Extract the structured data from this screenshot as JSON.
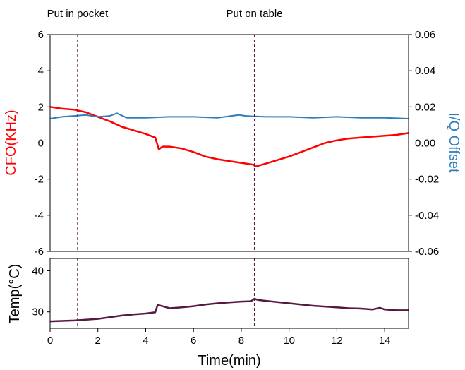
{
  "chart_data": [
    {
      "type": "line",
      "title": "",
      "xlabel": "",
      "xlim": [
        0,
        15
      ],
      "ylabel_left": "CFO(KHz)",
      "ylabel_right": "I/Q Offset",
      "ylim_left": [
        -6,
        6
      ],
      "ylim_right": [
        -0.06,
        0.06
      ],
      "y_ticks_left": [
        "-6",
        "-4",
        "-2",
        "0",
        "2",
        "4",
        "6"
      ],
      "y_tick_values_left": [
        -6,
        -4,
        -2,
        0,
        2,
        4,
        6
      ],
      "y_ticks_right": [
        "-0.06",
        "-0.04",
        "-0.02",
        "0.00",
        "0.02",
        "0.04",
        "0.06"
      ],
      "y_tick_values_right": [
        -0.06,
        -0.04,
        -0.02,
        0.0,
        0.02,
        0.04,
        0.06
      ],
      "grid": false,
      "annotations": [
        {
          "text": "Put in pocket",
          "x": 1.15
        },
        {
          "text": "Put on table",
          "x": 8.55
        }
      ],
      "series": [
        {
          "axis": "left",
          "color": "#ff0000",
          "x": [
            0,
            0.5,
            1.0,
            1.5,
            2.0,
            2.5,
            3.0,
            3.5,
            4.0,
            4.4,
            4.55,
            4.7,
            5.0,
            5.5,
            6.0,
            6.5,
            7.0,
            7.5,
            8.0,
            8.5,
            8.6,
            9.0,
            9.5,
            10.0,
            10.5,
            11.0,
            11.5,
            12.0,
            12.5,
            13.0,
            13.5,
            14.0,
            14.5,
            15.0
          ],
          "values": [
            2.0,
            1.9,
            1.85,
            1.7,
            1.45,
            1.2,
            0.9,
            0.7,
            0.5,
            0.3,
            -0.35,
            -0.2,
            -0.2,
            -0.3,
            -0.5,
            -0.75,
            -0.9,
            -1.0,
            -1.1,
            -1.2,
            -1.3,
            -1.15,
            -0.95,
            -0.75,
            -0.5,
            -0.25,
            0.0,
            0.15,
            0.25,
            0.3,
            0.35,
            0.4,
            0.45,
            0.55
          ]
        },
        {
          "axis": "right",
          "color": "#2e7ebc",
          "x": [
            0,
            0.5,
            1.0,
            1.5,
            2.0,
            2.5,
            2.8,
            3.2,
            4.0,
            5.0,
            6.0,
            7.0,
            7.9,
            8.2,
            9.0,
            10.0,
            11.0,
            12.0,
            13.0,
            14.0,
            15.0
          ],
          "values": [
            0.0135,
            0.0145,
            0.015,
            0.0155,
            0.0145,
            0.015,
            0.0165,
            0.014,
            0.014,
            0.0145,
            0.0145,
            0.014,
            0.0155,
            0.015,
            0.0145,
            0.0145,
            0.014,
            0.0145,
            0.014,
            0.014,
            0.0135
          ]
        }
      ]
    },
    {
      "type": "line",
      "title": "",
      "xlabel": "Time(min)",
      "ylabel": "Temp(°C)",
      "xlim": [
        0,
        15
      ],
      "ylim": [
        26,
        43
      ],
      "x_ticks": [
        "0",
        "2",
        "4",
        "6",
        "8",
        "10",
        "12",
        "14"
      ],
      "x_tick_values": [
        0,
        2,
        4,
        6,
        8,
        10,
        12,
        14
      ],
      "y_ticks": [
        "30",
        "40"
      ],
      "y_tick_values": [
        30,
        40
      ],
      "grid": false,
      "series": [
        {
          "color": "#571841",
          "x": [
            0,
            0.5,
            1.0,
            1.5,
            2.0,
            2.5,
            3.0,
            3.5,
            4.0,
            4.4,
            4.5,
            4.7,
            5.0,
            5.5,
            6.0,
            6.5,
            7.0,
            7.5,
            8.0,
            8.4,
            8.55,
            8.7,
            9.0,
            9.5,
            10.0,
            10.5,
            11.0,
            11.5,
            12.0,
            12.5,
            13.0,
            13.5,
            13.8,
            14.0,
            14.5,
            15.0
          ],
          "values": [
            27.7,
            27.8,
            27.9,
            28.1,
            28.3,
            28.7,
            29.1,
            29.4,
            29.6,
            29.9,
            31.7,
            31.4,
            30.9,
            31.1,
            31.4,
            31.8,
            32.1,
            32.3,
            32.5,
            32.6,
            33.2,
            32.9,
            32.7,
            32.4,
            32.1,
            31.8,
            31.5,
            31.3,
            31.1,
            30.9,
            30.8,
            30.6,
            31.0,
            30.6,
            30.4,
            30.4
          ]
        }
      ]
    }
  ]
}
